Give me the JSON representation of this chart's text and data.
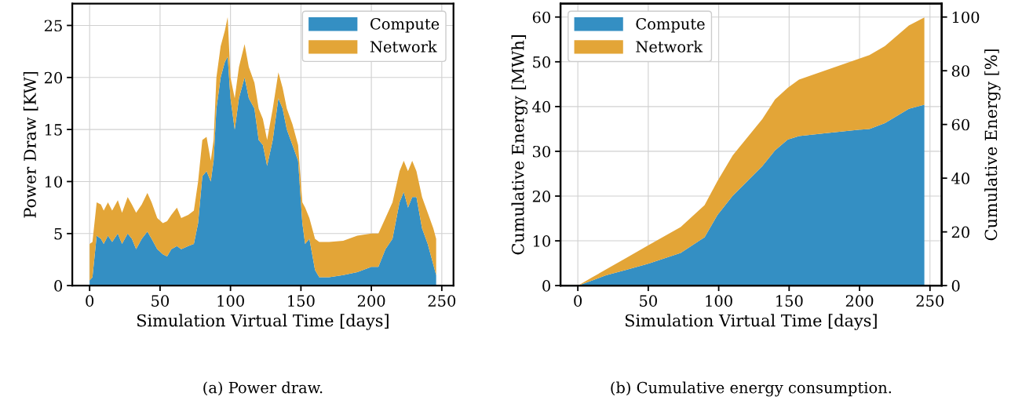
{
  "chart_data": [
    {
      "type": "area",
      "stacked": true,
      "xlabel": "Simulation Virtual Time [days]",
      "ylabel": "Power Draw [KW]",
      "annotations": [
        "(a) Power draw."
      ],
      "x": [
        0,
        2,
        5,
        8,
        10,
        13,
        16,
        20,
        23,
        27,
        30,
        33,
        37,
        41,
        44,
        48,
        52,
        55,
        58,
        62,
        65,
        70,
        74,
        77,
        80,
        83,
        86,
        88,
        90,
        93,
        96,
        98,
        100,
        103,
        106,
        110,
        113,
        117,
        120,
        123,
        126,
        130,
        134,
        137,
        140,
        144,
        148,
        151,
        153,
        156,
        160,
        163,
        170,
        180,
        190,
        200,
        205,
        210,
        215,
        220,
        223,
        226,
        229,
        232,
        236,
        240,
        244,
        246
      ],
      "series": [
        {
          "name": "Compute",
          "color": "#348fc3",
          "values": [
            0.5,
            0.8,
            4.8,
            4.5,
            4.0,
            4.8,
            4.2,
            5.0,
            4.0,
            5.0,
            4.5,
            3.5,
            4.5,
            5.2,
            4.5,
            3.5,
            3.0,
            2.8,
            3.5,
            3.8,
            3.5,
            3.8,
            4.0,
            6.0,
            10.5,
            11.0,
            10.0,
            12.0,
            17.0,
            20.0,
            21.5,
            22.0,
            18.0,
            15.0,
            18.0,
            20.0,
            18.0,
            17.0,
            14.0,
            13.5,
            11.5,
            14.0,
            18.0,
            17.0,
            15.0,
            13.5,
            12.0,
            6.0,
            4.0,
            4.5,
            1.5,
            0.8,
            0.8,
            1.0,
            1.3,
            1.8,
            1.8,
            3.5,
            4.5,
            8.0,
            9.0,
            7.5,
            8.5,
            8.5,
            5.5,
            4.0,
            2.0,
            1.0
          ]
        },
        {
          "name": "Network",
          "color": "#e3a537",
          "values": [
            3.5,
            3.4,
            3.2,
            3.3,
            3.2,
            3.2,
            3.0,
            3.2,
            3.0,
            3.5,
            3.3,
            3.5,
            3.3,
            3.7,
            3.5,
            3.0,
            3.0,
            3.4,
            3.3,
            3.7,
            3.0,
            3.0,
            3.2,
            4.0,
            3.5,
            3.3,
            2.0,
            2.0,
            3.0,
            3.0,
            3.0,
            3.8,
            2.0,
            3.0,
            3.0,
            3.2,
            3.0,
            2.5,
            3.0,
            2.5,
            2.5,
            3.0,
            2.5,
            2.0,
            2.0,
            2.0,
            1.5,
            2.0,
            3.5,
            2.0,
            3.0,
            3.4,
            3.4,
            3.3,
            3.5,
            3.2,
            3.2,
            3.0,
            3.5,
            3.0,
            3.0,
            3.5,
            3.5,
            2.5,
            3.0,
            3.0,
            3.5,
            3.5
          ]
        }
      ],
      "xlim": [
        -12.3,
        258.3
      ],
      "xticks": [
        0,
        50,
        100,
        150,
        200,
        250
      ],
      "ylim": [
        0,
        27.1
      ],
      "yticks": [
        0,
        5,
        10,
        15,
        20,
        25
      ],
      "grid": true,
      "legend": "top right"
    },
    {
      "type": "area",
      "stacked": true,
      "xlabel": "Simulation Virtual Time [days]",
      "ylabel": "Cumulative Energy [MWh]",
      "y2label": "Cumulative Energy [%]",
      "annotations": [
        "(b) Cumulative energy consumption."
      ],
      "x": [
        0,
        10,
        20,
        34,
        50,
        73,
        90,
        99,
        110,
        131,
        140,
        149,
        157,
        175,
        199,
        207,
        218,
        235,
        246
      ],
      "series": [
        {
          "name": "Compute",
          "color": "#348fc3",
          "values": [
            0,
            1.1,
            2.3,
            3.5,
            4.9,
            7.3,
            10.8,
            15.7,
            20.1,
            26.7,
            30.2,
            32.6,
            33.4,
            34.0,
            34.8,
            35.0,
            36.3,
            39.5,
            40.4
          ]
        },
        {
          "name": "Network",
          "color": "#e3a537",
          "values": [
            0,
            0.7,
            1.3,
            2.6,
            4.1,
            5.8,
            7.2,
            7.6,
            9.0,
            10.5,
            11.4,
            11.6,
            12.6,
            14.0,
            15.8,
            16.5,
            17.2,
            18.6,
            19.5
          ]
        }
      ],
      "xlim": [
        -12.3,
        258.3
      ],
      "xticks": [
        0,
        50,
        100,
        150,
        200,
        250
      ],
      "ylim": [
        0,
        63
      ],
      "yticks": [
        0,
        10,
        20,
        30,
        40,
        50,
        60
      ],
      "y2lim": [
        0,
        105
      ],
      "y2ticks": [
        0,
        20,
        40,
        60,
        80,
        100
      ],
      "grid": true,
      "legend": "top left"
    }
  ]
}
